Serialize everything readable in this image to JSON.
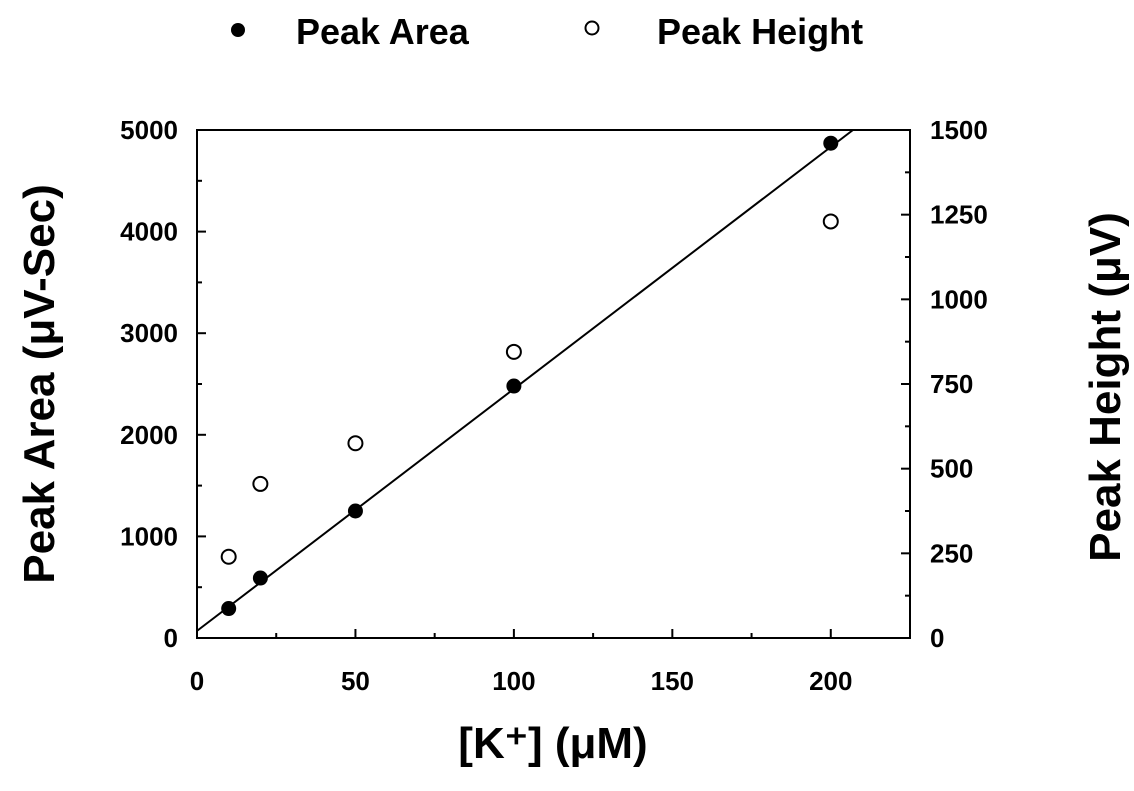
{
  "chart_data": {
    "type": "scatter",
    "title": "",
    "xlabel": "[K⁺] (μM)",
    "ylabel": "Peak Area (μV-Sec)",
    "y2label": "Peak Height (μV)",
    "xlim": [
      0,
      225
    ],
    "ylim": [
      0,
      5000
    ],
    "y2lim": [
      0,
      1500
    ],
    "x_ticks": [
      "0",
      "50",
      "100",
      "150",
      "200"
    ],
    "y_ticks": [
      "0",
      "1000",
      "2000",
      "3000",
      "4000",
      "5000"
    ],
    "y2_ticks": [
      "0",
      "250",
      "500",
      "750",
      "1000",
      "1250",
      "1500"
    ],
    "grid": false,
    "legend_position": "top-center",
    "series": [
      {
        "name": "Peak Area",
        "marker": "filled-circle",
        "axis": "left",
        "x": [
          10,
          20,
          50,
          100,
          200
        ],
        "y": [
          290,
          590,
          1250,
          2480,
          4870
        ]
      },
      {
        "name": "Peak Height",
        "marker": "open-circle",
        "axis": "right",
        "x": [
          10,
          20,
          50,
          100,
          200
        ],
        "y": [
          240,
          455,
          575,
          845,
          1230
        ]
      }
    ],
    "fit_line": {
      "series": "Peak Area",
      "x": [
        0,
        207
      ],
      "y": [
        70,
        5000
      ]
    }
  }
}
